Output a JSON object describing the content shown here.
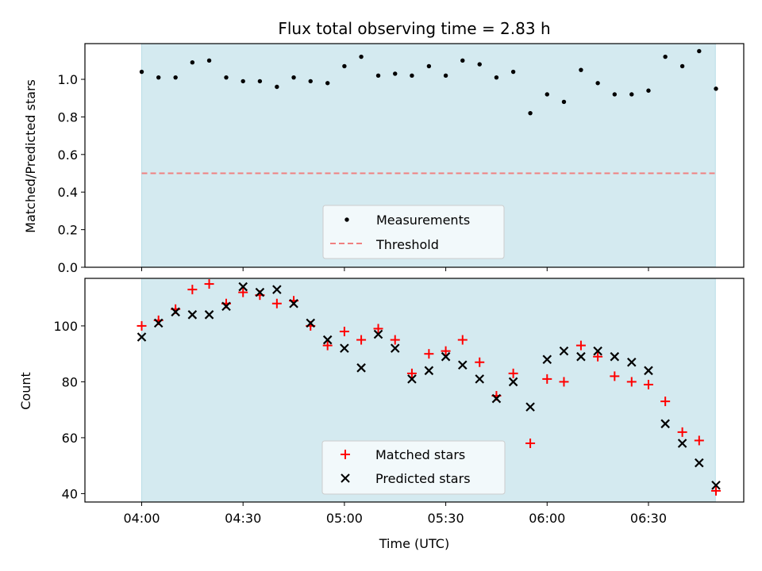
{
  "chart_data": [
    {
      "type": "scatter",
      "title": "Flux total observing time = 2.83 h",
      "xlabel": "",
      "ylabel": "Matched/Predicted stars",
      "ylim": [
        0,
        1.19
      ],
      "xlim": [
        3.72,
        6.97
      ],
      "yticks": [
        0.0,
        0.2,
        0.4,
        0.6,
        0.8,
        1.0
      ],
      "ytick_labels": [
        "0.0",
        "0.2",
        "0.4",
        "0.6",
        "0.8",
        "1.0"
      ],
      "shaded_span": [
        4.0,
        6.83
      ],
      "series": [
        {
          "name": "Measurements",
          "marker": "dot",
          "color": "#000000",
          "x": [
            4.0,
            4.083,
            4.167,
            4.25,
            4.333,
            4.417,
            4.5,
            4.583,
            4.667,
            4.75,
            4.833,
            4.917,
            5.0,
            5.083,
            5.167,
            5.25,
            5.333,
            5.417,
            5.5,
            5.583,
            5.667,
            5.75,
            5.833,
            5.917,
            6.0,
            6.083,
            6.167,
            6.25,
            6.333,
            6.417,
            6.5,
            6.583,
            6.667,
            6.75,
            6.833
          ],
          "values": [
            1.04,
            1.01,
            1.01,
            1.09,
            1.1,
            1.01,
            0.99,
            0.99,
            0.96,
            1.01,
            0.99,
            0.98,
            1.07,
            1.12,
            1.02,
            1.03,
            1.02,
            1.07,
            1.02,
            1.1,
            1.08,
            1.01,
            1.04,
            0.82,
            0.92,
            0.88,
            1.05,
            0.98,
            0.92,
            0.92,
            0.94,
            1.12,
            1.07,
            1.15,
            0.95
          ]
        },
        {
          "name": "Threshold",
          "type": "hline",
          "style": "dashed",
          "color": "#f08080",
          "value": 0.5
        }
      ],
      "legend": [
        "Measurements",
        "Threshold"
      ],
      "legend_position": "lower-center"
    },
    {
      "type": "scatter",
      "xlabel": "Time (UTC)",
      "ylabel": "Count",
      "ylim": [
        37,
        117
      ],
      "xlim": [
        3.72,
        6.97
      ],
      "yticks": [
        40,
        60,
        80,
        100
      ],
      "ytick_labels": [
        "40",
        "60",
        "80",
        "100"
      ],
      "xticks": [
        4.0,
        4.5,
        5.0,
        5.5,
        6.0,
        6.5
      ],
      "xtick_labels": [
        "04:00",
        "04:30",
        "05:00",
        "05:30",
        "06:00",
        "06:30"
      ],
      "shaded_span": [
        4.0,
        6.83
      ],
      "series": [
        {
          "name": "Matched stars",
          "marker": "plus",
          "color": "#ff0000",
          "x": [
            4.0,
            4.083,
            4.167,
            4.25,
            4.333,
            4.417,
            4.5,
            4.583,
            4.667,
            4.75,
            4.833,
            4.917,
            5.0,
            5.083,
            5.167,
            5.25,
            5.333,
            5.417,
            5.5,
            5.583,
            5.667,
            5.75,
            5.833,
            5.917,
            6.0,
            6.083,
            6.167,
            6.25,
            6.333,
            6.417,
            6.5,
            6.583,
            6.667,
            6.75,
            6.833
          ],
          "values": [
            100,
            102,
            106,
            113,
            115,
            108,
            112,
            111,
            108,
            109,
            100,
            93,
            98,
            95,
            99,
            95,
            83,
            90,
            91,
            95,
            87,
            75,
            83,
            58,
            81,
            80,
            93,
            89,
            82,
            80,
            79,
            73,
            62,
            59,
            41
          ]
        },
        {
          "name": "Predicted stars",
          "marker": "x",
          "color": "#000000",
          "x": [
            4.0,
            4.083,
            4.167,
            4.25,
            4.333,
            4.417,
            4.5,
            4.583,
            4.667,
            4.75,
            4.833,
            4.917,
            5.0,
            5.083,
            5.167,
            5.25,
            5.333,
            5.417,
            5.5,
            5.583,
            5.667,
            5.75,
            5.833,
            5.917,
            6.0,
            6.083,
            6.167,
            6.25,
            6.333,
            6.417,
            6.5,
            6.583,
            6.667,
            6.75,
            6.833
          ],
          "values": [
            96,
            101,
            105,
            104,
            104,
            107,
            114,
            112,
            113,
            108,
            101,
            95,
            92,
            85,
            97,
            92,
            81,
            84,
            89,
            86,
            81,
            74,
            80,
            71,
            88,
            91,
            89,
            91,
            89,
            87,
            84,
            65,
            58,
            51,
            43
          ]
        }
      ],
      "legend": [
        "Matched stars",
        "Predicted stars"
      ],
      "legend_position": "lower-center"
    }
  ],
  "colors": {
    "shade": "#d4eaf0",
    "shade_edge": "#b9dde7",
    "threshold": "#f08080",
    "matched": "#ff0000",
    "predicted": "#000000",
    "measurement": "#000000"
  }
}
